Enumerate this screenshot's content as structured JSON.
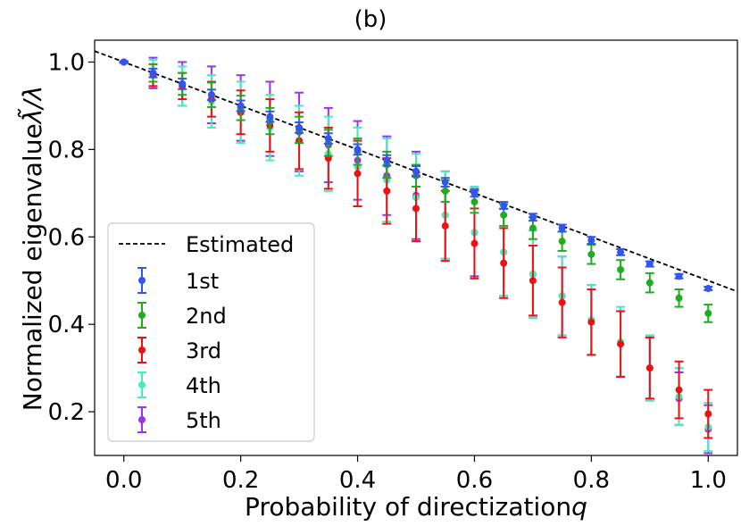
{
  "chart_data": {
    "type": "scatter",
    "title": "(b)",
    "xlabel": "Probability of directization",
    "xlabel_var": "q",
    "ylabel": "Normalized eigenvalue",
    "ylabel_var": "λ̃/λ",
    "xlim": [
      -0.05,
      1.05
    ],
    "ylim": [
      0.1,
      1.05
    ],
    "xticks": [
      "0.0",
      "0.2",
      "0.4",
      "0.6",
      "0.8",
      "1.0"
    ],
    "yticks": [
      "0.2",
      "0.4",
      "0.6",
      "0.8",
      "1.0"
    ],
    "legend_position": "lower-left",
    "x": [
      0.0,
      0.05,
      0.1,
      0.15,
      0.2,
      0.25,
      0.3,
      0.35,
      0.4,
      0.45,
      0.5,
      0.55,
      0.6,
      0.65,
      0.7,
      0.75,
      0.8,
      0.85,
      0.9,
      0.95,
      1.0
    ],
    "estimated": {
      "name": "Estimated",
      "x": [
        -0.05,
        1.05
      ],
      "y": [
        1.025,
        0.475
      ],
      "color": "#000000"
    },
    "series": [
      {
        "name": "1st",
        "color": "#3355ee",
        "values": [
          1.0,
          0.975,
          0.95,
          0.925,
          0.9,
          0.875,
          0.85,
          0.825,
          0.8,
          0.775,
          0.75,
          0.725,
          0.7,
          0.672,
          0.645,
          0.62,
          0.592,
          0.565,
          0.538,
          0.51,
          0.482
        ],
        "errors": [
          0.002,
          0.01,
          0.012,
          0.012,
          0.012,
          0.012,
          0.012,
          0.012,
          0.012,
          0.012,
          0.012,
          0.01,
          0.008,
          0.008,
          0.008,
          0.008,
          0.008,
          0.007,
          0.006,
          0.005,
          0.004
        ]
      },
      {
        "name": "2nd",
        "color": "#22aa22",
        "values": [
          1.0,
          0.975,
          0.95,
          0.925,
          0.895,
          0.865,
          0.845,
          0.815,
          0.795,
          0.765,
          0.74,
          0.705,
          0.68,
          0.65,
          0.62,
          0.59,
          0.56,
          0.525,
          0.495,
          0.46,
          0.425
        ],
        "errors": [
          0.002,
          0.02,
          0.025,
          0.028,
          0.028,
          0.03,
          0.03,
          0.03,
          0.03,
          0.03,
          0.025,
          0.025,
          0.025,
          0.025,
          0.025,
          0.022,
          0.022,
          0.022,
          0.022,
          0.02,
          0.02
        ]
      },
      {
        "name": "3rd",
        "color": "#ee1111",
        "values": [
          1.0,
          0.97,
          0.945,
          0.915,
          0.885,
          0.855,
          0.82,
          0.78,
          0.745,
          0.705,
          0.665,
          0.625,
          0.585,
          0.54,
          0.5,
          0.45,
          0.405,
          0.355,
          0.3,
          0.25,
          0.195
        ],
        "errors": [
          0.002,
          0.025,
          0.03,
          0.04,
          0.05,
          0.06,
          0.065,
          0.07,
          0.075,
          0.075,
          0.075,
          0.08,
          0.08,
          0.08,
          0.08,
          0.08,
          0.075,
          0.075,
          0.07,
          0.065,
          0.055
        ]
      },
      {
        "name": "4th",
        "color": "#44eebb",
        "values": [
          1.0,
          0.975,
          0.945,
          0.91,
          0.885,
          0.85,
          0.82,
          0.79,
          0.76,
          0.73,
          0.69,
          0.65,
          0.61,
          0.565,
          0.515,
          0.465,
          0.41,
          0.36,
          0.3,
          0.235,
          0.165
        ],
        "errors": [
          0.002,
          0.03,
          0.045,
          0.06,
          0.07,
          0.075,
          0.08,
          0.085,
          0.09,
          0.095,
          0.1,
          0.1,
          0.105,
          0.1,
          0.1,
          0.09,
          0.08,
          0.08,
          0.075,
          0.065,
          0.055
        ]
      },
      {
        "name": "5th",
        "color": "#9933ee",
        "values": [
          1.0,
          0.975,
          0.95,
          0.925,
          0.895,
          0.87,
          0.84,
          0.81,
          0.775,
          0.74,
          0.695,
          0.65,
          0.61,
          0.565,
          0.515,
          0.465,
          0.41,
          0.355,
          0.3,
          0.23,
          0.16
        ],
        "errors": [
          0.002,
          0.035,
          0.05,
          0.065,
          0.075,
          0.085,
          0.09,
          0.085,
          0.09,
          0.09,
          0.1,
          0.1,
          0.1,
          0.1,
          0.1,
          0.09,
          0.08,
          0.075,
          0.07,
          0.06,
          0.055
        ]
      }
    ]
  }
}
